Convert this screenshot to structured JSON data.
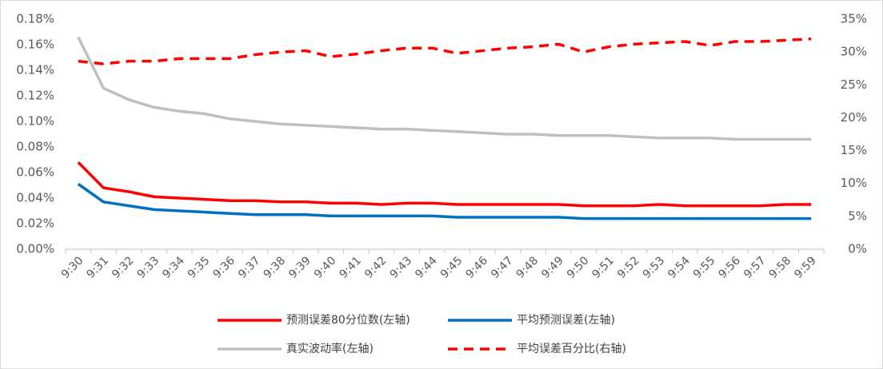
{
  "chart_data": {
    "type": "line",
    "categories": [
      "9:30",
      "9:31",
      "9:32",
      "9:33",
      "9:34",
      "9:35",
      "9:36",
      "9:37",
      "9:38",
      "9:39",
      "9:40",
      "9:41",
      "9:42",
      "9:43",
      "9:44",
      "9:45",
      "9:46",
      "9:47",
      "9:48",
      "9:49",
      "9:50",
      "9:51",
      "9:52",
      "9:53",
      "9:54",
      "9:55",
      "9:56",
      "9:57",
      "9:58",
      "9:59"
    ],
    "series": [
      {
        "name": "预测误差80分位数(左轴)",
        "color": "#ff0000",
        "style": "solid",
        "values": [
          0.068,
          0.048,
          0.045,
          0.041,
          0.04,
          0.039,
          0.038,
          0.038,
          0.037,
          0.037,
          0.036,
          0.036,
          0.035,
          0.036,
          0.036,
          0.035,
          0.035,
          0.035,
          0.035,
          0.035,
          0.034,
          0.034,
          0.034,
          0.035,
          0.034,
          0.034,
          0.034,
          0.034,
          0.035,
          0.035
        ]
      },
      {
        "name": "平均预测误差(左轴)",
        "color": "#0070c0",
        "style": "solid",
        "values": [
          0.051,
          0.037,
          0.034,
          0.031,
          0.03,
          0.029,
          0.028,
          0.027,
          0.027,
          0.027,
          0.026,
          0.026,
          0.026,
          0.026,
          0.026,
          0.025,
          0.025,
          0.025,
          0.025,
          0.025,
          0.024,
          0.024,
          0.024,
          0.024,
          0.024,
          0.024,
          0.024,
          0.024,
          0.024,
          0.024
        ]
      },
      {
        "name": "真实波动率(左轴)",
        "color": "#bfbfbf",
        "style": "solid",
        "values": [
          0.166,
          0.126,
          0.117,
          0.111,
          0.108,
          0.106,
          0.102,
          0.1,
          0.098,
          0.097,
          0.096,
          0.095,
          0.094,
          0.094,
          0.093,
          0.092,
          0.091,
          0.09,
          0.09,
          0.089,
          0.089,
          0.089,
          0.088,
          0.087,
          0.087,
          0.087,
          0.086,
          0.086,
          0.086,
          0.086
        ]
      },
      {
        "name": "平均误差百分比(右轴)",
        "color": "#ff0000",
        "style": "dashed",
        "axis": "y2",
        "values": [
          28.6,
          28.2,
          28.6,
          28.6,
          29.0,
          29.0,
          29.0,
          29.6,
          30.0,
          30.2,
          29.3,
          29.7,
          30.2,
          30.6,
          30.6,
          29.8,
          30.2,
          30.6,
          30.8,
          31.2,
          30.0,
          30.8,
          31.2,
          31.4,
          31.6,
          31.0,
          31.6,
          31.6,
          31.8,
          32.0
        ]
      }
    ],
    "ylim": [
      0,
      0.18
    ],
    "yticks": [
      {
        "value": 0,
        "label": "0.00%"
      },
      {
        "value": 0.02,
        "label": "0.02%"
      },
      {
        "value": 0.04,
        "label": "0.04%"
      },
      {
        "value": 0.06,
        "label": "0.06%"
      },
      {
        "value": 0.08,
        "label": "0.08%"
      },
      {
        "value": 0.1,
        "label": "0.10%"
      },
      {
        "value": 0.12,
        "label": "0.12%"
      },
      {
        "value": 0.14,
        "label": "0.14%"
      },
      {
        "value": 0.16,
        "label": "0.16%"
      },
      {
        "value": 0.18,
        "label": "0.18%"
      }
    ],
    "y2lim": [
      0,
      35
    ],
    "y2ticks": [
      {
        "value": 0,
        "label": "0%"
      },
      {
        "value": 5,
        "label": "5%"
      },
      {
        "value": 10,
        "label": "10%"
      },
      {
        "value": 15,
        "label": "15%"
      },
      {
        "value": 20,
        "label": "20%"
      },
      {
        "value": 25,
        "label": "25%"
      },
      {
        "value": 30,
        "label": "30%"
      },
      {
        "value": 35,
        "label": "35%"
      }
    ],
    "grid": false
  }
}
